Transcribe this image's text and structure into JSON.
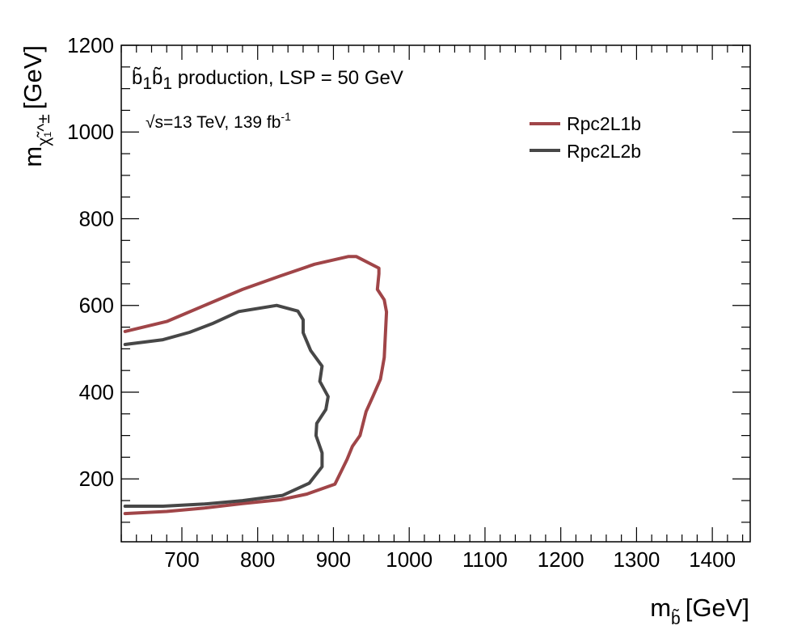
{
  "chart_data": {
    "type": "line",
    "title": "",
    "xlabel": {
      "symbol": "m",
      "subscript": "b̃",
      "unit": "[GeV]"
    },
    "ylabel": {
      "symbol": "m",
      "subscript": "χ̃₁^±",
      "unit": "[GeV]"
    },
    "xlim": [
      620,
      1450
    ],
    "ylim": [
      55,
      1200
    ],
    "x_ticks": [
      700,
      800,
      900,
      1000,
      1100,
      1200,
      1300,
      1400
    ],
    "x_tick_labels": [
      "700",
      "800",
      "900",
      "1000",
      "1100",
      "1200",
      "1300",
      "1400"
    ],
    "y_ticks": [
      200,
      400,
      600,
      800,
      1000,
      1200
    ],
    "y_tick_labels": [
      "200",
      "400",
      "600",
      "800",
      "1000",
      "1200"
    ],
    "annotations": {
      "process_prefix": "b̃",
      "process_sub1": "1",
      "process_mid": "b̃",
      "process_sub2": "1",
      "process_text": " production, LSP = 50 GeV",
      "energy_sqrt": "√",
      "energy_text": "s=13 TeV, 139 fb",
      "energy_sup": "-1"
    },
    "series": [
      {
        "name": "Rpc2L1b",
        "color": "#a04548",
        "x": [
          625,
          680,
          730,
          780,
          830,
          875,
          920,
          930,
          960,
          960,
          958,
          967,
          970,
          967,
          962,
          952,
          943,
          935,
          925,
          918,
          902,
          865,
          830,
          780,
          730,
          680,
          625
        ],
        "y": [
          540,
          563,
          600,
          637,
          668,
          695,
          713,
          713,
          686,
          673,
          637,
          613,
          585,
          480,
          430,
          390,
          355,
          300,
          275,
          245,
          188,
          165,
          152,
          143,
          133,
          125,
          120
        ]
      },
      {
        "name": "Rpc2L2b",
        "color": "#474747",
        "x": [
          625,
          675,
          710,
          740,
          775,
          825,
          853,
          860,
          860,
          870,
          885,
          882,
          893,
          890,
          878,
          877,
          885,
          885,
          868,
          833,
          780,
          730,
          675,
          625
        ],
        "y": [
          510,
          521,
          538,
          558,
          586,
          600,
          587,
          567,
          537,
          496,
          460,
          425,
          390,
          360,
          328,
          300,
          260,
          228,
          190,
          162,
          150,
          142,
          137,
          137
        ]
      }
    ]
  }
}
